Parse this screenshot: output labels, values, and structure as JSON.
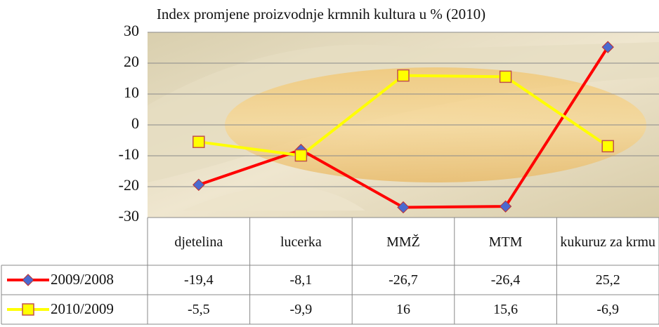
{
  "chart_data": {
    "type": "line",
    "title": "Index promjene proizvodnje krmnih kultura u % (2010)",
    "categories": [
      "djetelina",
      "lucerka",
      "MMŽ",
      "MTM",
      "kukuruz za krmu"
    ],
    "series": [
      {
        "name": "2009/2008",
        "color": "#ff0000",
        "marker": "diamond",
        "marker_color": "#4a6ad0",
        "values": [
          -19.4,
          -8.1,
          -26.7,
          -26.4,
          25.2
        ],
        "value_labels": [
          "-19,4",
          "-8,1",
          "-26,7",
          "-26,4",
          "25,2"
        ]
      },
      {
        "name": "2010/2009",
        "color": "#ffff00",
        "marker": "square",
        "marker_color": "#ffff00",
        "values": [
          -5.5,
          -9.9,
          16,
          15.6,
          -6.9
        ],
        "value_labels": [
          "-5,5",
          "-9,9",
          "16",
          "15,6",
          "-6,9"
        ]
      }
    ],
    "ylim": [
      -30,
      30
    ],
    "yticks": [
      30,
      20,
      10,
      0,
      -10,
      -20,
      -30
    ],
    "grid": true
  }
}
